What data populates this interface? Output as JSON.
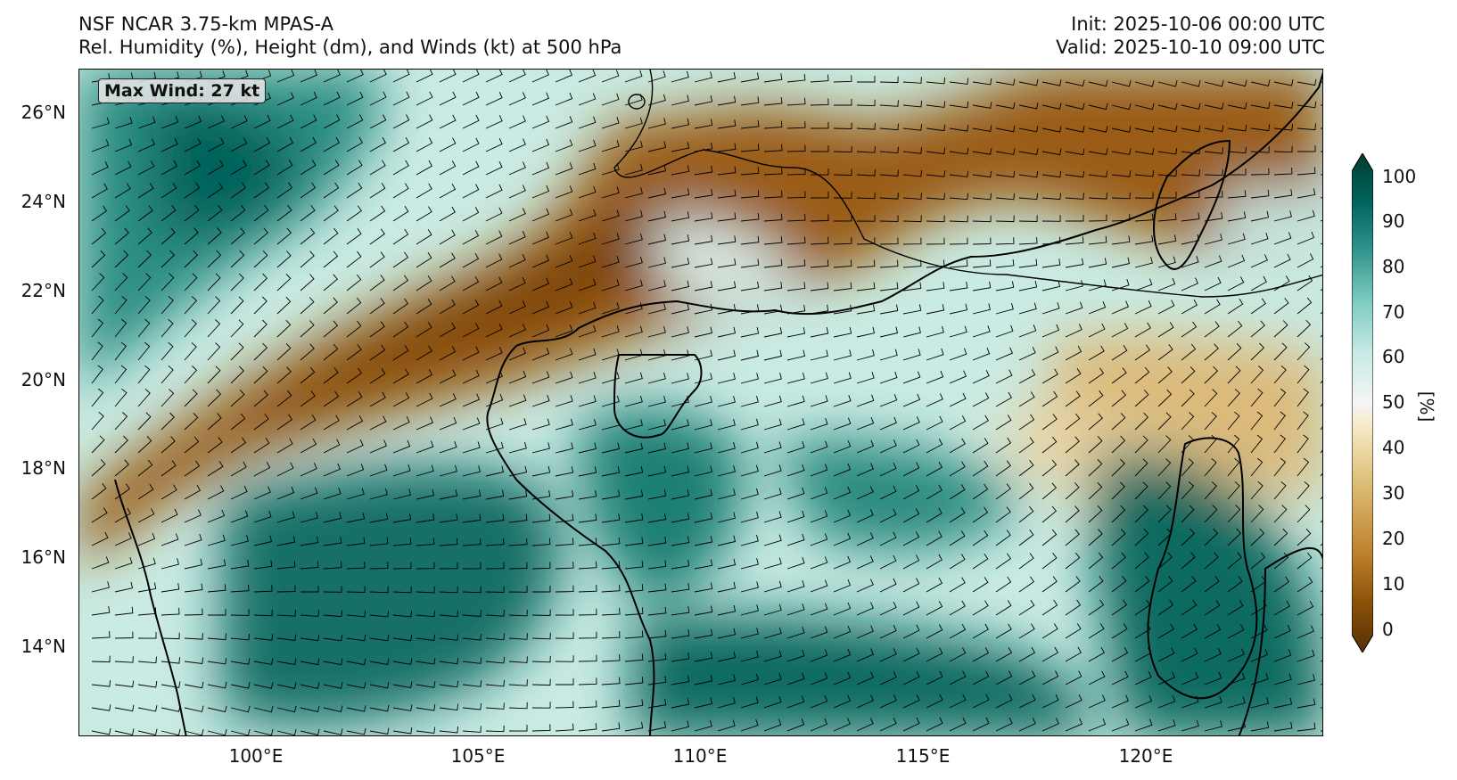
{
  "header": {
    "model": "NSF NCAR 3.75-km MPAS-A",
    "field": "Rel. Humidity (%), Height (dm), and Winds (kt) at 500 hPa",
    "init": "Init: 2025-10-06 00:00 UTC",
    "valid": "Valid: 2025-10-10 09:00 UTC"
  },
  "map": {
    "max_wind_label": "Max Wind: 27 kt",
    "extent": {
      "lon": [
        96,
        124
      ],
      "lat": [
        12,
        27
      ]
    },
    "lat_ticks": [
      "26°N",
      "24°N",
      "22°N",
      "20°N",
      "18°N",
      "16°N",
      "14°N"
    ],
    "lon_ticks": [
      "100°E",
      "105°E",
      "110°E",
      "115°E",
      "120°E"
    ],
    "colors": {
      "dry": "#8c510a",
      "mid": "#f5f0dc",
      "moist": "#01665e",
      "very_moist": "#003c30"
    }
  },
  "colorbar": {
    "ticks": [
      "100",
      "90",
      "80",
      "70",
      "60",
      "50",
      "40",
      "30",
      "20",
      "10",
      "0"
    ],
    "unit": "[%]",
    "stops": [
      "#543005",
      "#8c510a",
      "#bf812d",
      "#dfc27d",
      "#f6e8c3",
      "#f5f5f5",
      "#c7eae5",
      "#80cdc1",
      "#35978f",
      "#01665e",
      "#003c30"
    ]
  }
}
